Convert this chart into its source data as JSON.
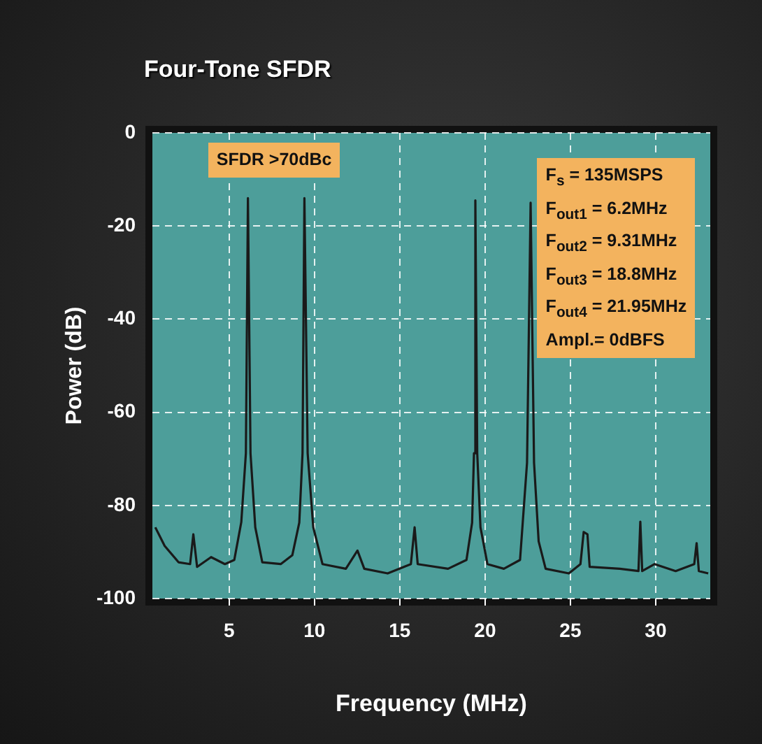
{
  "chart_data": {
    "type": "line",
    "title": "Four-Tone SFDR",
    "xlabel": "Frequency (MHz)",
    "ylabel": "Power (dB)",
    "annotations": [
      "SFDR >70dBc",
      "F$_{s}$ = 135MSPS\nF$_{out1}$ = 6.2MHz\nF$_{out2}$ = 9.31MHz\nF$_{out3}$ = 18.8MHz\nF$_{out4}$ = 21.95MHz\nAmpl.= 0dBFS"
    ],
    "xlim": [
      0.5,
      33.2
    ],
    "xticks": [
      5,
      10,
      15,
      20,
      25,
      30
    ],
    "ylim": [
      -100,
      0
    ],
    "yticks": [
      -100,
      -80,
      -60,
      -40,
      -20,
      0
    ],
    "grid": true,
    "marker": "none",
    "line_style": "solid",
    "series": [
      {
        "color": "#1a1a1a",
        "x": [
          0.67,
          1.22,
          2.03,
          2.71,
          2.9,
          3.12,
          3.94,
          4.75,
          5.3,
          5.71,
          5.98,
          6.1,
          6.25,
          6.53,
          6.94,
          8.02,
          8.7,
          9.11,
          9.3,
          9.41,
          9.6,
          9.93,
          10.47,
          11.84,
          12.52,
          12.92,
          14.29,
          15.65,
          15.87,
          16.05,
          17.83,
          18.91,
          19.24,
          19.35,
          19.43,
          19.54,
          19.73,
          20.14,
          21.1,
          22.05,
          22.46,
          22.67,
          22.87,
          23.14,
          23.55,
          24.91,
          25.59,
          25.78,
          26.0,
          26.13,
          27.9,
          28.99,
          29.1,
          29.21,
          29.94,
          31.17,
          32.26,
          32.4,
          32.53,
          33.08
        ],
        "values": [
          -84.7,
          -88.7,
          -92.2,
          -92.6,
          -86.2,
          -93.2,
          -91.1,
          -92.6,
          -91.7,
          -83.6,
          -68.8,
          -14,
          -68.8,
          -84.7,
          -92.2,
          -92.6,
          -90.7,
          -83.7,
          -68.8,
          -14,
          -68.8,
          -84.7,
          -92.6,
          -93.6,
          -89.7,
          -93.6,
          -94.6,
          -92.6,
          -84.7,
          -92.6,
          -93.6,
          -91.7,
          -83.7,
          -68.8,
          -14.5,
          -68.8,
          -84.7,
          -92.6,
          -93.6,
          -91.7,
          -70.8,
          -15,
          -70.8,
          -87.7,
          -93.6,
          -94.6,
          -92.6,
          -85.7,
          -86.2,
          -93.2,
          -93.6,
          -94.1,
          -83.5,
          -94.1,
          -92.6,
          -94.1,
          -92.6,
          -88.1,
          -94.1,
          -94.6
        ]
      }
    ]
  }
}
